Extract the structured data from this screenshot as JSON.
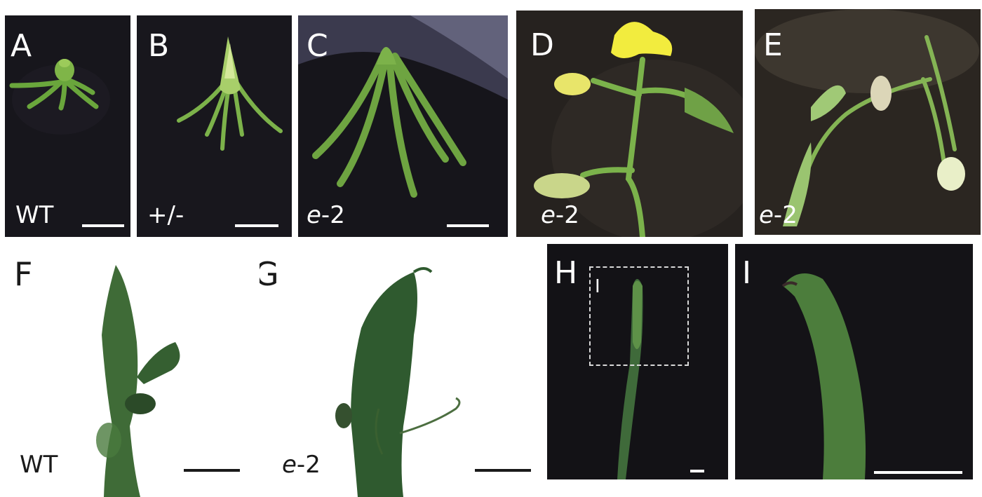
{
  "panels": [
    {
      "letter": "A",
      "label_plain": "WT",
      "label_italic": "",
      "label_suffix": ""
    },
    {
      "letter": "B",
      "label_plain": "+/-",
      "label_italic": "",
      "label_suffix": ""
    },
    {
      "letter": "C",
      "label_plain": "",
      "label_italic": "e",
      "label_suffix": "-2"
    },
    {
      "letter": "D",
      "label_plain": "",
      "label_italic": "e",
      "label_suffix": "-2"
    },
    {
      "letter": "E",
      "label_plain": "",
      "label_italic": "e",
      "label_suffix": "-2"
    },
    {
      "letter": "F",
      "label_plain": "WT",
      "label_italic": "",
      "label_suffix": ""
    },
    {
      "letter": "G",
      "label_plain": "",
      "label_italic": "e",
      "label_suffix": "-2"
    },
    {
      "letter": "H",
      "inset_letter": "I"
    },
    {
      "letter": "I"
    }
  ],
  "colors": {
    "background_dark": "#15141a",
    "plant_green": "#5f9a3a",
    "flower_yellow": "#e8e84a",
    "hairy_green": "#3d6a35"
  }
}
